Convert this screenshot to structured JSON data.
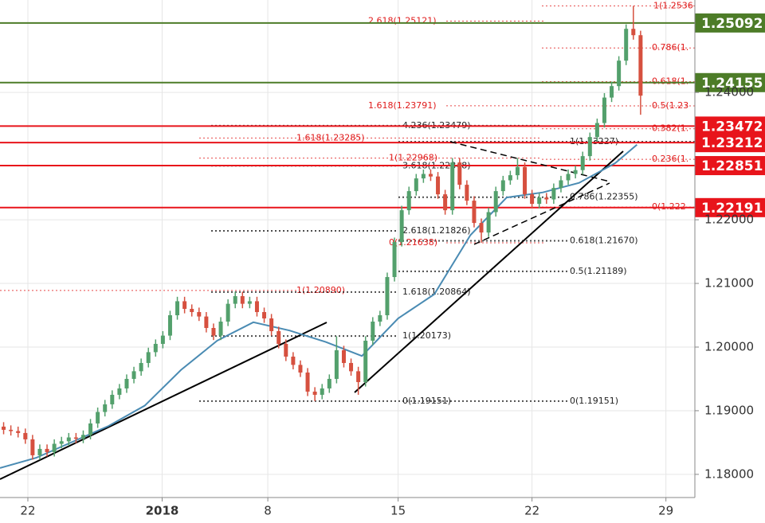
{
  "chart_data": {
    "type": "candlestick",
    "xlim": [
      0,
      96
    ],
    "xticks": [
      {
        "value": 3.85,
        "label": "22"
      },
      {
        "value": 22.4,
        "label": "2018"
      },
      {
        "value": 37,
        "label": "8"
      },
      {
        "value": 55,
        "label": "15"
      },
      {
        "value": 73.5,
        "label": "22"
      },
      {
        "value": 92,
        "label": "29"
      }
    ],
    "ylim": [
      1.17636,
      1.25453
    ],
    "yticks": [
      {
        "value": 1.18,
        "label": "1.18000"
      },
      {
        "value": 1.19,
        "label": "1.19000"
      },
      {
        "value": 1.2,
        "label": "1.20000"
      },
      {
        "value": 1.21,
        "label": "1.21000"
      },
      {
        "value": 1.22,
        "label": "1.22000"
      },
      {
        "value": 1.24,
        "label": "1.24000"
      }
    ],
    "grid": true,
    "up_color": "#53a06c",
    "down_color": "#d6503f",
    "open": [
      1.1875,
      1.187,
      1.1868,
      1.1865,
      1.1855,
      1.183,
      1.184,
      1.1835,
      1.1848,
      1.1852,
      1.1858,
      1.1856,
      1.1862,
      1.188,
      1.1898,
      1.191,
      1.1925,
      1.1935,
      1.195,
      1.1962,
      1.1975,
      1.1992,
      1.2005,
      1.2018,
      1.205,
      1.2072,
      1.206,
      1.2055,
      1.2048,
      1.203,
      1.2018,
      1.204,
      1.2068,
      1.208,
      1.2068,
      1.2072,
      1.2055,
      1.2045,
      1.2025,
      1.2005,
      1.1985,
      1.1972,
      1.196,
      1.193,
      1.1925,
      1.1935,
      1.195,
      1.1995,
      1.1975,
      1.1962,
      1.1945,
      1.201,
      1.204,
      1.205,
      1.211,
      1.2165,
      1.2215,
      1.2245,
      1.2265,
      1.2272,
      1.2268,
      1.224,
      1.2215,
      1.229,
      1.2255,
      1.223,
      1.2195,
      1.218,
      1.2212,
      1.2245,
      1.2262,
      1.227,
      1.2283,
      1.224,
      1.2225,
      1.2235,
      1.2232,
      1.225,
      1.2262,
      1.2272,
      1.2278,
      1.23,
      1.233,
      1.2352,
      1.2392,
      1.241,
      1.245,
      1.25,
      1.249
    ],
    "high": [
      1.1882,
      1.1877,
      1.1875,
      1.1872,
      1.1862,
      1.1847,
      1.1847,
      1.1855,
      1.1859,
      1.1865,
      1.1865,
      1.1869,
      1.1887,
      1.1905,
      1.1917,
      1.1932,
      1.1942,
      1.1957,
      1.1969,
      1.1982,
      1.1999,
      1.2012,
      1.2025,
      1.2057,
      1.2079,
      1.2079,
      1.2067,
      1.2062,
      1.2055,
      1.2037,
      1.2047,
      1.2075,
      1.2087,
      1.2087,
      1.2079,
      1.2079,
      1.2062,
      1.2052,
      1.2032,
      1.2012,
      1.1992,
      1.1979,
      1.1967,
      1.1937,
      1.1942,
      1.1957,
      1.2017,
      1.2002,
      1.1982,
      1.1969,
      1.2017,
      1.2047,
      1.2057,
      1.2117,
      1.2172,
      1.2222,
      1.2252,
      1.2272,
      1.2279,
      1.2279,
      1.2275,
      1.2247,
      1.2297,
      1.2297,
      1.2262,
      1.2237,
      1.2202,
      1.2219,
      1.2252,
      1.2269,
      1.2277,
      1.2297,
      1.229,
      1.2247,
      1.2242,
      1.2242,
      1.2257,
      1.2269,
      1.2279,
      1.2285,
      1.2307,
      1.2337,
      1.2359,
      1.2399,
      1.2417,
      1.2457,
      1.2507,
      1.2536,
      1.2497
    ],
    "low": [
      1.1863,
      1.1861,
      1.1858,
      1.1848,
      1.1823,
      1.1823,
      1.1828,
      1.1828,
      1.1841,
      1.1845,
      1.1849,
      1.1849,
      1.1855,
      1.1873,
      1.1891,
      1.1903,
      1.1918,
      1.1928,
      1.1943,
      1.1955,
      1.1968,
      1.1985,
      1.1998,
      1.2011,
      1.2043,
      1.2053,
      1.2048,
      1.2041,
      1.2023,
      1.2011,
      1.2011,
      1.2033,
      1.2061,
      1.2061,
      1.2061,
      1.2048,
      1.2038,
      1.2018,
      1.1998,
      1.1978,
      1.1965,
      1.1953,
      1.1923,
      1.1915,
      1.1918,
      1.1928,
      1.1943,
      1.1968,
      1.1955,
      1.1925,
      1.1938,
      1.2003,
      1.2033,
      1.2043,
      1.2103,
      1.2158,
      1.2208,
      1.2238,
      1.2258,
      1.2261,
      1.2233,
      1.2208,
      1.2208,
      1.2248,
      1.2223,
      1.2188,
      1.2164,
      1.2173,
      1.2205,
      1.2238,
      1.2255,
      1.2263,
      1.2233,
      1.2218,
      1.2218,
      1.2225,
      1.2225,
      1.2243,
      1.2255,
      1.2265,
      1.2271,
      1.2293,
      1.2323,
      1.2345,
      1.2385,
      1.2403,
      1.2443,
      1.2483,
      1.2365
    ],
    "close": [
      1.187,
      1.1868,
      1.1865,
      1.1855,
      1.183,
      1.184,
      1.1835,
      1.1848,
      1.1852,
      1.1858,
      1.1856,
      1.1862,
      1.188,
      1.1898,
      1.191,
      1.1925,
      1.1935,
      1.195,
      1.1962,
      1.1975,
      1.1992,
      1.2005,
      1.2018,
      1.205,
      1.2072,
      1.206,
      1.2055,
      1.2048,
      1.203,
      1.2018,
      1.204,
      1.2068,
      1.208,
      1.2068,
      1.2072,
      1.2055,
      1.2045,
      1.2025,
      1.2005,
      1.1985,
      1.1972,
      1.196,
      1.193,
      1.1925,
      1.1935,
      1.195,
      1.1995,
      1.1975,
      1.1962,
      1.1945,
      1.201,
      1.204,
      1.205,
      1.211,
      1.2165,
      1.2215,
      1.2245,
      1.2265,
      1.2272,
      1.2268,
      1.224,
      1.2215,
      1.229,
      1.2255,
      1.223,
      1.2195,
      1.218,
      1.2212,
      1.2245,
      1.2262,
      1.227,
      1.2283,
      1.224,
      1.2225,
      1.2235,
      1.2232,
      1.225,
      1.2262,
      1.2272,
      1.2278,
      1.23,
      1.233,
      1.2352,
      1.2392,
      1.241,
      1.245,
      1.25,
      1.249,
      1.2395
    ],
    "ma": {
      "color": "#4a8bb3",
      "x": [
        0,
        5,
        10,
        15,
        20,
        25,
        30,
        35,
        40,
        45,
        50,
        55,
        60,
        65,
        70,
        75,
        80,
        85,
        88
      ],
      "values": [
        1.181,
        1.1826,
        1.1851,
        1.1876,
        1.1908,
        1.1964,
        1.201,
        1.2039,
        1.2026,
        1.2008,
        1.1986,
        1.2045,
        1.2083,
        1.2176,
        1.2235,
        1.2243,
        1.2258,
        1.2289,
        1.2318
      ]
    },
    "levels": [
      {
        "value": 1.25092,
        "color": "#4d7c28"
      },
      {
        "value": 1.24155,
        "color": "#4d7c28"
      },
      {
        "value": 1.23472,
        "color": "#e8141b"
      },
      {
        "value": 1.23212,
        "color": "#e8141b"
      },
      {
        "value": 1.22851,
        "color": "#e8141b"
      },
      {
        "value": 1.22191,
        "color": "#e8141b"
      }
    ],
    "annotations": [
      {
        "label": "1(1.2536",
        "value": 1.2536,
        "color": "#e01a1a"
      },
      {
        "label": "2.618(1.25121)",
        "value": 1.25121,
        "color": "#e01a1a"
      },
      {
        "label": "0.786(1.",
        "value": 1.247,
        "color": "#e01a1a"
      },
      {
        "label": "0.618(1.",
        "value": 1.2417,
        "color": "#e01a1a"
      },
      {
        "label": "1.618(1.23791)",
        "value": 1.23791,
        "color": "#e01a1a"
      },
      {
        "label": "0.5(1.23",
        "value": 1.2379,
        "color": "#e01a1a"
      },
      {
        "label": "4.236(1.23479)",
        "value": 1.23479,
        "color": "#222222"
      },
      {
        "label": "0.382(1.",
        "value": 1.2343,
        "color": "#e01a1a"
      },
      {
        "label": "1.618(1.23285)",
        "value": 1.23285,
        "color": "#e01a1a"
      },
      {
        "label": "1(1.23227)",
        "value": 1.23227,
        "color": "#222222"
      },
      {
        "label": "1(1.22968)",
        "value": 1.22968,
        "color": "#e01a1a"
      },
      {
        "label": "3.618(1.22848)",
        "value": 1.22848,
        "color": "#222222"
      },
      {
        "label": "0.236(1.",
        "value": 1.2295,
        "color": "#e01a1a"
      },
      {
        "label": "0.786(1.22355)",
        "value": 1.22355,
        "color": "#222222"
      },
      {
        "label": "0(1.222",
        "value": 1.222,
        "color": "#e01a1a"
      },
      {
        "label": "2.618(1.21826)",
        "value": 1.21826,
        "color": "#222222"
      },
      {
        "label": "0.618(1.21670)",
        "value": 1.2167,
        "color": "#222222"
      },
      {
        "label": "0(1.21638)",
        "value": 1.21638,
        "color": "#e01a1a"
      },
      {
        "label": "0.5(1.21189)",
        "value": 1.21189,
        "color": "#222222"
      },
      {
        "label": "1(1.20890)",
        "value": 1.2089,
        "color": "#e01a1a"
      },
      {
        "label": "1.618(1.20864)",
        "value": 1.20864,
        "color": "#222222"
      },
      {
        "label": "1(1.20173)",
        "value": 1.20173,
        "color": "#222222"
      },
      {
        "label": "0(1.19151)",
        "value": 1.19151,
        "color": "#222222"
      },
      {
        "label": "0(1.19151)",
        "value": 1.19151,
        "color": "#222222"
      }
    ]
  }
}
